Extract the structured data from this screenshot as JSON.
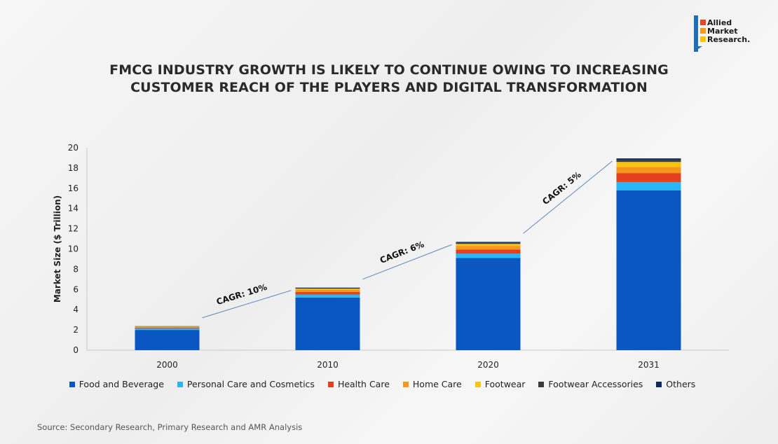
{
  "logo": {
    "lines": [
      "Allied",
      "Market",
      "Research."
    ],
    "colors": [
      "#e8462a",
      "#f59a1b",
      "#f7c600"
    ]
  },
  "title": {
    "line1": "FMCG INDUSTRY GROWTH IS LIKELY TO CONTINUE OWING TO INCREASING",
    "line2": "CUSTOMER REACH OF THE PLAYERS AND DIGITAL TRANSFORMATION"
  },
  "source": "Source: Secondary Research, Primary Research and AMR Analysis",
  "chart_data": {
    "type": "bar",
    "stacked": true,
    "title": "FMCG INDUSTRY GROWTH IS LIKELY TO CONTINUE OWING TO INCREASING CUSTOMER REACH OF THE PLAYERS AND DIGITAL TRANSFORMATION",
    "xlabel": "",
    "ylabel": "Market Size ($ Trillion)",
    "ylim": [
      0,
      20
    ],
    "yticks": [
      0,
      2,
      4,
      6,
      8,
      10,
      12,
      14,
      16,
      18,
      20
    ],
    "categories": [
      "2000",
      "2010",
      "2020",
      "2031"
    ],
    "series": [
      {
        "name": "Food and Beverage",
        "color": "#0a57c2",
        "values": [
          2.0,
          5.2,
          9.1,
          15.8
        ]
      },
      {
        "name": "Personal Care and Cosmetics",
        "color": "#29b6f6",
        "values": [
          0.15,
          0.3,
          0.45,
          0.8
        ]
      },
      {
        "name": "Health Care",
        "color": "#e2401f",
        "values": [
          0.07,
          0.25,
          0.4,
          0.9
        ]
      },
      {
        "name": "Home Care",
        "color": "#f4971b",
        "values": [
          0.07,
          0.2,
          0.35,
          0.6
        ]
      },
      {
        "name": "Footwear",
        "color": "#f6c514",
        "values": [
          0.04,
          0.12,
          0.2,
          0.5
        ]
      },
      {
        "name": "Footwear Accessories",
        "color": "#3c3c3c",
        "values": [
          0.02,
          0.06,
          0.1,
          0.2
        ]
      },
      {
        "name": "Others",
        "color": "#102a5c",
        "values": [
          0.02,
          0.05,
          0.1,
          0.15
        ]
      }
    ],
    "annotations": [
      {
        "text": "CAGR: 10%",
        "from": "2000",
        "to": "2010"
      },
      {
        "text": "CAGR: 6%",
        "from": "2010",
        "to": "2020"
      },
      {
        "text": "CAGR: 5%",
        "from": "2020",
        "to": "2031"
      }
    ],
    "legend_position": "bottom"
  }
}
